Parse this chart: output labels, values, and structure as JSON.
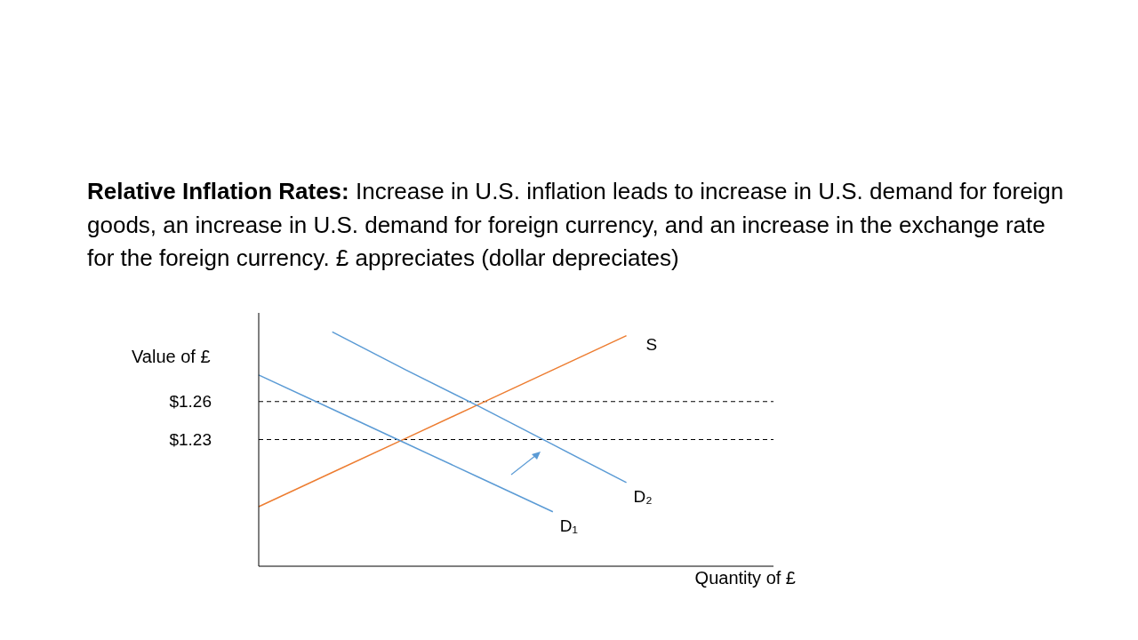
{
  "chart_data": {
    "type": "line",
    "title": "Relative Inflation Rates:",
    "subtitle": "Increase in U.S. inflation leads to increase in U.S. demand for foreign goods, an increase in U.S. demand for foreign currency, and an increase in the exchange rate for the foreign currency.  £ appreciates (dollar depreciates)",
    "xlabel": "Quantity of £",
    "ylabel": "Value of £",
    "categories": [
      null,
      null,
      null,
      null,
      null,
      null,
      null,
      null
    ],
    "series": [
      {
        "name": "S",
        "color": "#ed7d31",
        "values": [
          1.177,
          1.204,
          1.231,
          1.258,
          1.285,
          1.312,
          null,
          null
        ]
      },
      {
        "name": "D₁",
        "color": "#5b9bd5",
        "values": [
          1.281,
          1.254,
          1.227,
          1.2,
          1.173,
          null,
          null,
          null
        ]
      },
      {
        "name": "D₂",
        "color": "#5b9bd5",
        "values": [
          null,
          1.315,
          1.285,
          1.256,
          1.226,
          1.196,
          null,
          null
        ]
      }
    ],
    "ylim": [
      1.13,
      1.33
    ],
    "yticks": [
      {
        "value": 1.26,
        "label": "$1.26"
      },
      {
        "value": 1.23,
        "label": "$1.23"
      }
    ],
    "ref_lines": [
      {
        "axis": "y",
        "value": 1.26,
        "color": "#000000",
        "line_style": "dashed"
      },
      {
        "axis": "y",
        "value": 1.23,
        "color": "#000000",
        "line_style": "dashed"
      }
    ],
    "tick_labels": "y",
    "grid": false,
    "legend": false,
    "marker": "none",
    "line_style": "solid"
  }
}
